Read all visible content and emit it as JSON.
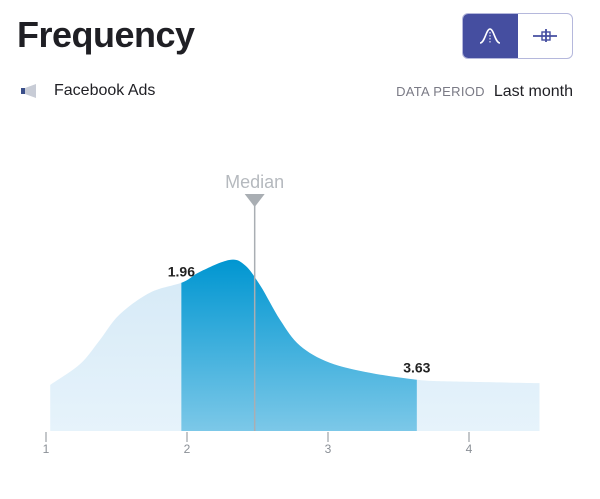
{
  "header": {
    "title": "Frequency",
    "source": "Facebook Ads",
    "source_icon": "megaphone-icon",
    "period_label": "DATA PERIOD",
    "period_value": "Last month"
  },
  "view_toggle": [
    {
      "icon": "distribution-curve-icon",
      "active": true
    },
    {
      "icon": "box-plot-icon",
      "active": false
    }
  ],
  "colors": {
    "accent": "#454ea0",
    "highlight_top": "#0096d1",
    "highlight_bottom": "#7cc8e8",
    "background_fill": "#dcedf8",
    "median": "#a9aeb3"
  },
  "chart_data": {
    "type": "area",
    "x": [
      1.03,
      1.24,
      1.38,
      1.52,
      1.74,
      1.97,
      2.09,
      2.3,
      2.41,
      2.52,
      2.66,
      2.8,
      3.01,
      3.3,
      3.63,
      3.87,
      4.5
    ],
    "density": [
      0.27,
      0.39,
      0.53,
      0.68,
      0.81,
      0.87,
      0.93,
      1.0,
      0.97,
      0.85,
      0.65,
      0.5,
      0.4,
      0.34,
      0.3,
      0.29,
      0.28
    ],
    "xlim": [
      1,
      4.55
    ],
    "xticks": [
      "1",
      "2",
      "3",
      "4"
    ],
    "highlight_range": [
      1.96,
      3.63
    ],
    "range_labels": [
      "1.96",
      "3.63"
    ],
    "median": 2.48,
    "median_label": "Median"
  }
}
